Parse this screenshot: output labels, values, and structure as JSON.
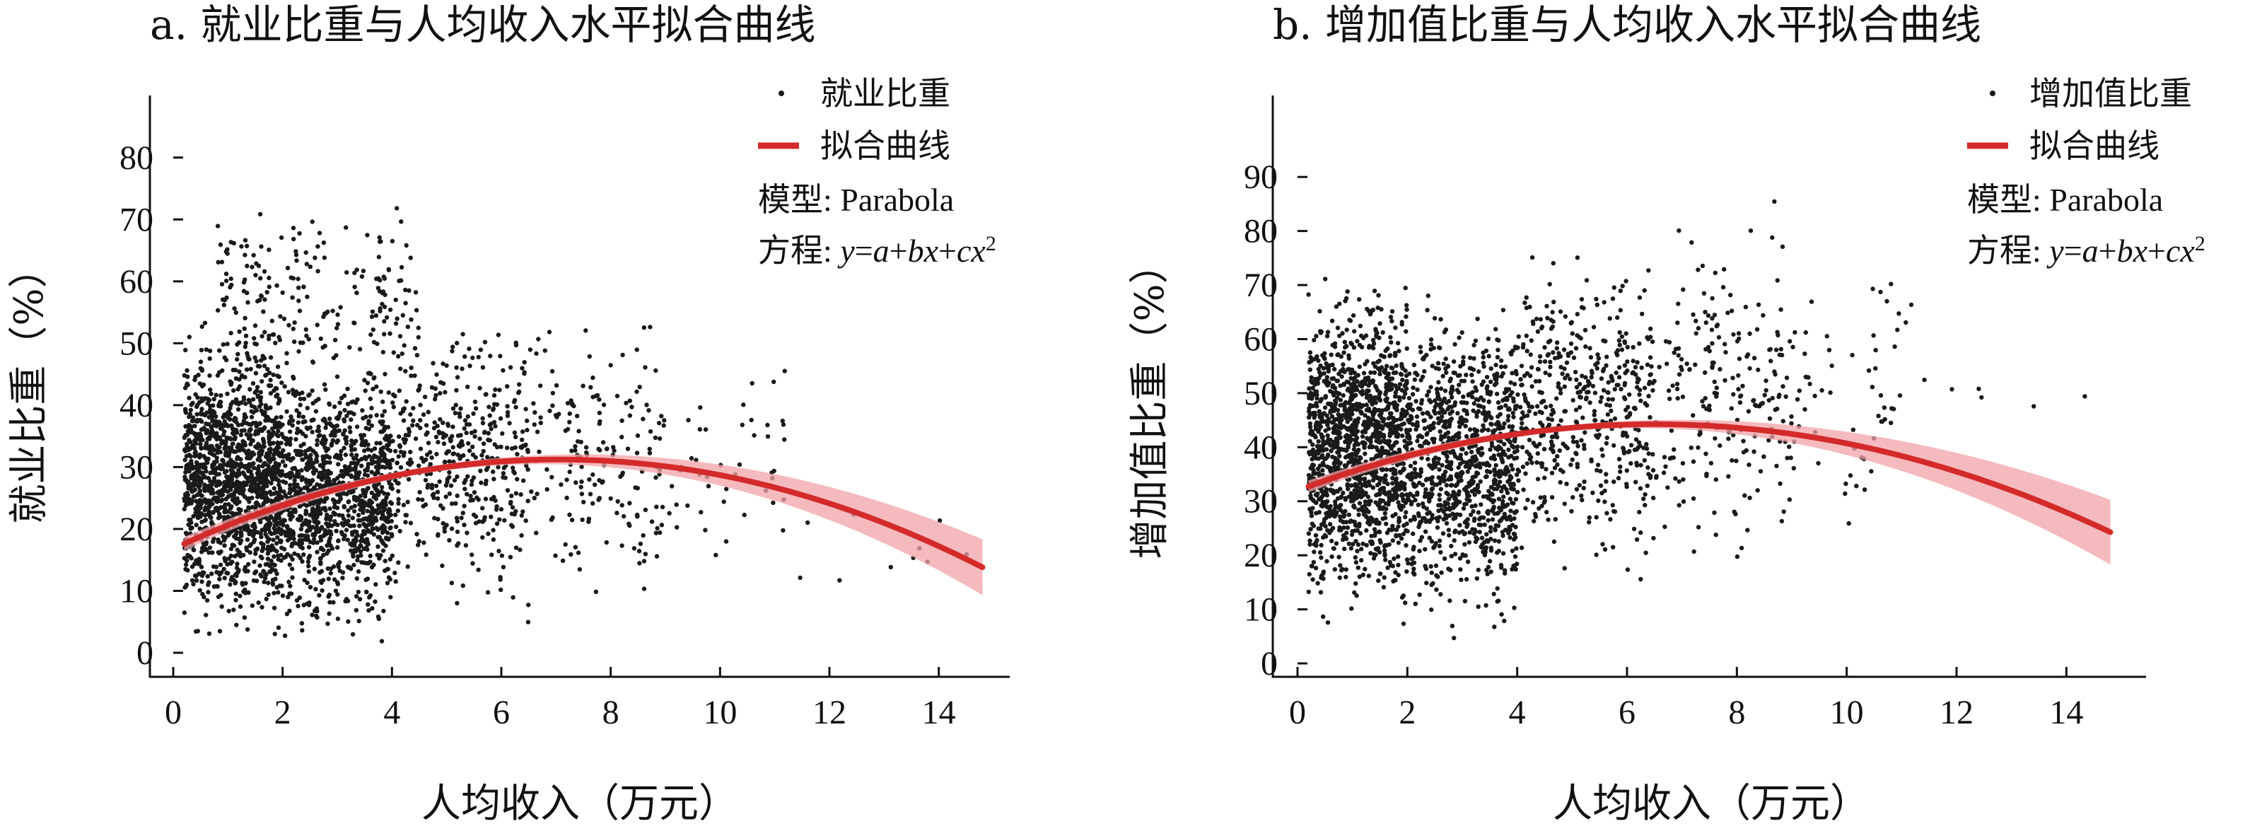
{
  "chart_data": [
    {
      "type": "scatter",
      "title": "a. 就业比重与人均收入水平拟合曲线",
      "xlabel": "人均收入（万元）",
      "ylabel": "就业比重（%）",
      "xlim": [
        0,
        15
      ],
      "ylim": [
        0,
        85
      ],
      "xticks": [
        0,
        2,
        4,
        6,
        8,
        10,
        12,
        14
      ],
      "yticks": [
        0,
        10,
        20,
        30,
        40,
        50,
        60,
        70,
        80
      ],
      "grid": false,
      "legend_position": "top-right",
      "point_color": "#1a1a1a",
      "fit_color": "#d42a2a",
      "band_color": "#f2a3a8",
      "series": [
        {
          "name": "就业比重",
          "kind": "scatter",
          "cloud": [
            {
              "x": [
                0.2,
                2.0
              ],
              "y": [
                0,
                55
              ],
              "count": 1500
            },
            {
              "x": [
                2.0,
                4.0
              ],
              "y": [
                0,
                50
              ],
              "count": 1100
            },
            {
              "x": [
                0.8,
                4.5
              ],
              "y": [
                40,
                75
              ],
              "count": 200
            },
            {
              "x": [
                4.0,
                6.5
              ],
              "y": [
                3,
                60
              ],
              "count": 450
            },
            {
              "x": [
                6.5,
                9.0
              ],
              "y": [
                5,
                58
              ],
              "count": 180
            },
            {
              "x": [
                9.0,
                11.2
              ],
              "y": [
                8,
                55
              ],
              "count": 45
            },
            {
              "x": [
                11.2,
                15.0
              ],
              "y": [
                10,
                25
              ],
              "count": 10
            }
          ]
        },
        {
          "name": "拟合曲线",
          "kind": "fit",
          "model": "Parabola",
          "a": 16.8,
          "b": 4.09,
          "c": -0.29,
          "x_range": [
            0.2,
            14.8
          ],
          "band_halfwidth": [
            0.5,
            4.5
          ]
        }
      ],
      "annotations": {
        "model_label": "模型: Parabola",
        "equation_prefix": "方程: ",
        "equation": "y=a+bx+cx2"
      }
    },
    {
      "type": "scatter",
      "title": "b. 增加值比重与人均收入水平拟合曲线",
      "xlabel": "人均收入（万元）",
      "ylabel": "增加值比重（%）",
      "xlim": [
        0,
        15
      ],
      "ylim": [
        0,
        95
      ],
      "xticks": [
        0,
        2,
        4,
        6,
        8,
        10,
        12,
        14
      ],
      "yticks": [
        0,
        10,
        20,
        30,
        40,
        50,
        60,
        70,
        80,
        90
      ],
      "grid": false,
      "legend_position": "top-right",
      "point_color": "#1a1a1a",
      "fit_color": "#d42a2a",
      "band_color": "#f2a3a8",
      "series": [
        {
          "name": "增加值比重",
          "kind": "scatter",
          "cloud": [
            {
              "x": [
                0.2,
                2.0
              ],
              "y": [
                5,
                75
              ],
              "count": 1400
            },
            {
              "x": [
                2.0,
                4.0
              ],
              "y": [
                3,
                70
              ],
              "count": 1000
            },
            {
              "x": [
                4.0,
                6.5
              ],
              "y": [
                10,
                82
              ],
              "count": 500
            },
            {
              "x": [
                6.5,
                9.0
              ],
              "y": [
                12,
                88
              ],
              "count": 220
            },
            {
              "x": [
                9.0,
                11.2
              ],
              "y": [
                20,
                80
              ],
              "count": 60
            },
            {
              "x": [
                11.2,
                15.0
              ],
              "y": [
                45,
                55
              ],
              "count": 6
            }
          ]
        },
        {
          "name": "拟合曲线",
          "kind": "fit",
          "model": "Parabola",
          "a": 32.0,
          "b": 3.77,
          "c": -0.29,
          "x_range": [
            0.2,
            14.8
          ],
          "band_halfwidth": [
            0.5,
            6.0
          ]
        }
      ],
      "annotations": {
        "model_label": "模型: Parabola",
        "equation_prefix": "方程: ",
        "equation": "y=a+bx+cx2"
      }
    }
  ]
}
